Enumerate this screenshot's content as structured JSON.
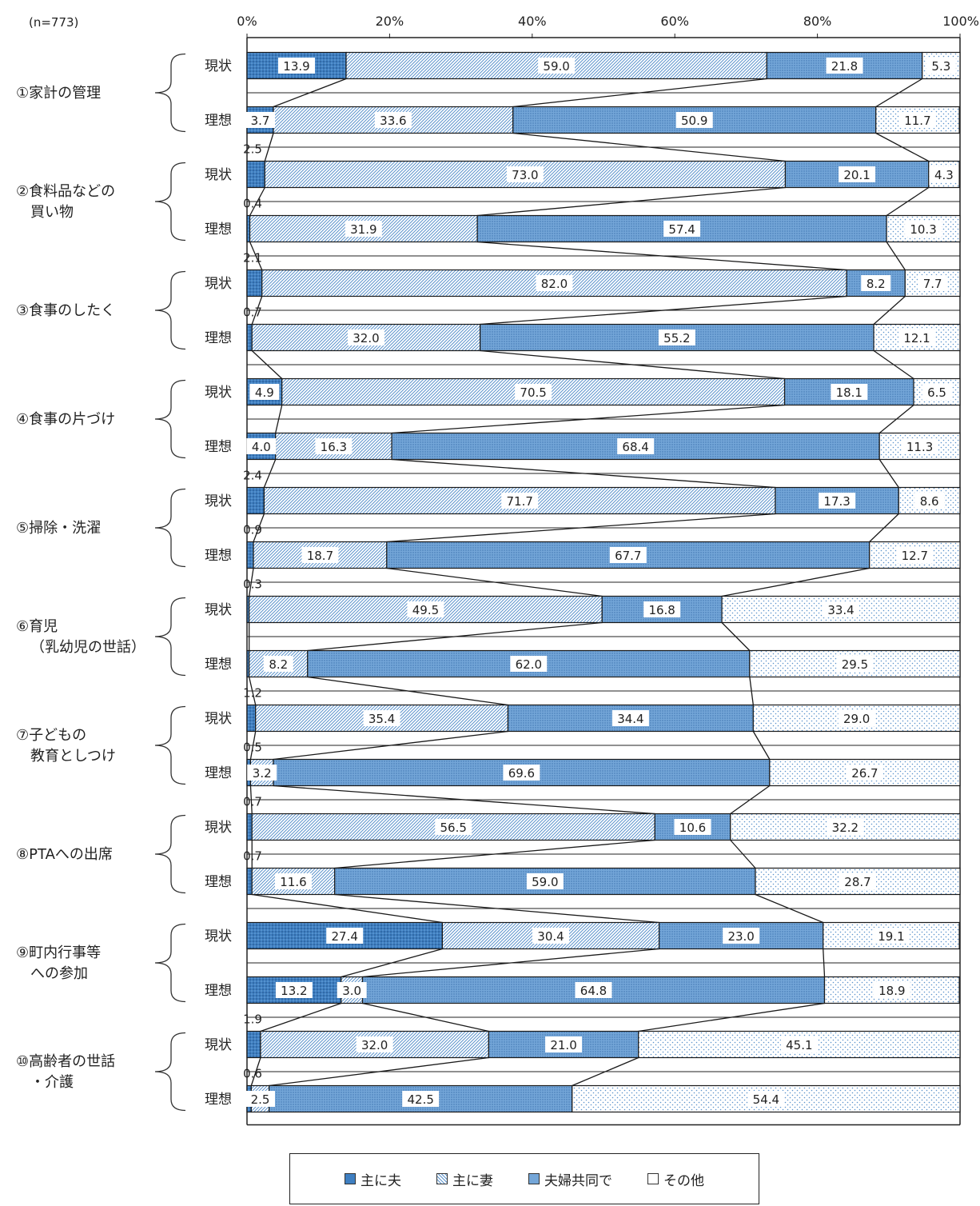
{
  "chart_data": {
    "type": "bar",
    "subtype": "stacked-horizontal-100pct",
    "sample_note": "(n=773)",
    "x_ticks": [
      "0%",
      "20%",
      "40%",
      "60%",
      "80%",
      "100%"
    ],
    "xlim": [
      0,
      100
    ],
    "grid": false,
    "legend_placement": "bottom",
    "series": [
      {
        "name": "主に夫",
        "color": "#3f7fc1",
        "pattern": "dark-dots"
      },
      {
        "name": "主に妻",
        "color": "#9dc0e4",
        "pattern": "diagonal-hatch"
      },
      {
        "name": "夫婦共同で",
        "color": "#74a6d8",
        "pattern": "dense-dots"
      },
      {
        "name": "その他",
        "color": "#ffffff",
        "pattern": "sparse-dots"
      }
    ],
    "groups": [
      {
        "label": [
          "①家計の管理"
        ],
        "rows": [
          {
            "label": "現状",
            "values": [
              13.9,
              59.0,
              21.8,
              5.3
            ],
            "display": [
              "13.9",
              "59.0",
              "21.8",
              "5.3"
            ]
          },
          {
            "label": "理想",
            "values": [
              3.7,
              33.6,
              50.9,
              11.7
            ],
            "display": [
              "3.7",
              "33.6",
              "50.9",
              "11.7"
            ]
          }
        ]
      },
      {
        "label": [
          "②食料品などの",
          "買い物"
        ],
        "rows": [
          {
            "label": "現状",
            "values": [
              2.5,
              73.0,
              20.1,
              4.3
            ],
            "display": [
              "2.5",
              "73.0",
              "20.1",
              "4.3"
            ]
          },
          {
            "label": "理想",
            "values": [
              0.4,
              31.9,
              57.4,
              10.3
            ],
            "display": [
              "0.4",
              "31.9",
              "57.4",
              "10.3"
            ]
          }
        ]
      },
      {
        "label": [
          "③食事のしたく"
        ],
        "rows": [
          {
            "label": "現状",
            "values": [
              2.1,
              82.0,
              8.2,
              7.7
            ],
            "display": [
              "2.1",
              "82.0",
              "8.2",
              "7.7"
            ]
          },
          {
            "label": "理想",
            "values": [
              0.7,
              32.0,
              55.2,
              12.1
            ],
            "display": [
              "0.7",
              "32.0",
              "55.2",
              "12.1"
            ]
          }
        ]
      },
      {
        "label": [
          "④食事の片づけ"
        ],
        "rows": [
          {
            "label": "現状",
            "values": [
              4.9,
              70.5,
              18.1,
              6.5
            ],
            "display": [
              "4.9",
              "70.5",
              "18.1",
              "6.5"
            ]
          },
          {
            "label": "理想",
            "values": [
              4.0,
              16.3,
              68.4,
              11.3
            ],
            "display": [
              "4.0",
              "16.3",
              "68.4",
              "11.3"
            ]
          }
        ]
      },
      {
        "label": [
          "⑤掃除・洗濯"
        ],
        "rows": [
          {
            "label": "現状",
            "values": [
              2.4,
              71.7,
              17.3,
              8.6
            ],
            "display": [
              "2.4",
              "71.7",
              "17.3",
              "8.6"
            ]
          },
          {
            "label": "理想",
            "values": [
              0.9,
              18.7,
              67.7,
              12.7
            ],
            "display": [
              "0.9",
              "18.7",
              "67.7",
              "12.7"
            ]
          }
        ]
      },
      {
        "label": [
          "⑥育児",
          "（乳幼児の世話）"
        ],
        "rows": [
          {
            "label": "現状",
            "values": [
              0.3,
              49.5,
              16.8,
              33.4
            ],
            "display": [
              "0.3",
              "49.5",
              "16.8",
              "33.4"
            ]
          },
          {
            "label": "理想",
            "values": [
              0.3,
              8.2,
              62.0,
              29.5
            ],
            "display": [
              "",
              "8.2",
              "62.0",
              "29.5"
            ]
          }
        ]
      },
      {
        "label": [
          "⑦子どもの",
          "教育としつけ"
        ],
        "rows": [
          {
            "label": "現状",
            "values": [
              1.2,
              35.4,
              34.4,
              29.0
            ],
            "display": [
              "1.2",
              "35.4",
              "34.4",
              "29.0"
            ]
          },
          {
            "label": "理想",
            "values": [
              0.5,
              3.2,
              69.6,
              26.7
            ],
            "display": [
              "0.5",
              "3.2",
              "69.6",
              "26.7"
            ]
          }
        ]
      },
      {
        "label": [
          "⑧PTAへの出席"
        ],
        "rows": [
          {
            "label": "現状",
            "values": [
              0.7,
              56.5,
              10.6,
              32.2
            ],
            "display": [
              "0.7",
              "56.5",
              "10.6",
              "32.2"
            ]
          },
          {
            "label": "理想",
            "values": [
              0.7,
              11.6,
              59.0,
              28.7
            ],
            "display": [
              "0.7",
              "11.6",
              "59.0",
              "28.7"
            ]
          }
        ]
      },
      {
        "label": [
          "⑨町内行事等",
          "への参加"
        ],
        "rows": [
          {
            "label": "現状",
            "values": [
              27.4,
              30.4,
              23.0,
              19.1
            ],
            "display": [
              "27.4",
              "30.4",
              "23.0",
              "19.1"
            ]
          },
          {
            "label": "理想",
            "values": [
              13.2,
              3.0,
              64.8,
              18.9
            ],
            "display": [
              "13.2",
              "3.0",
              "64.8",
              "18.9"
            ]
          }
        ]
      },
      {
        "label": [
          "⑩高齢者の世話",
          "・介護"
        ],
        "rows": [
          {
            "label": "現状",
            "values": [
              1.9,
              32.0,
              21.0,
              45.1
            ],
            "display": [
              "1.9",
              "32.0",
              "21.0",
              "45.1"
            ]
          },
          {
            "label": "理想",
            "values": [
              0.6,
              2.5,
              42.5,
              54.4
            ],
            "display": [
              "0.6",
              "2.5",
              "42.5",
              "54.4"
            ]
          }
        ]
      }
    ]
  }
}
